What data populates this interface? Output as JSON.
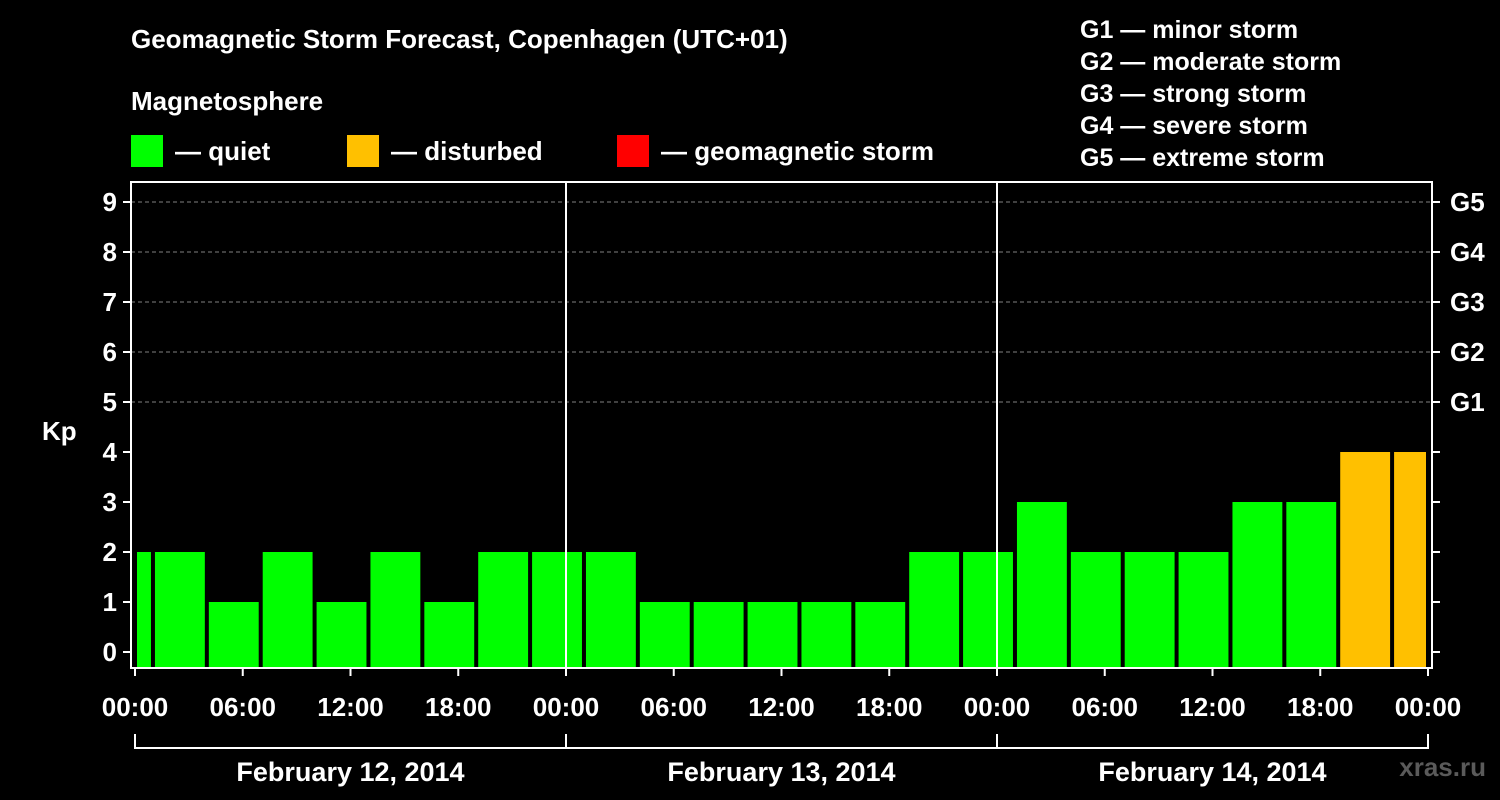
{
  "title": "Geomagnetic Storm Forecast, Copenhagen (UTC+01)",
  "legend": {
    "heading": "Magnetosphere",
    "items": [
      {
        "label": "— quiet",
        "color": "#00ff00"
      },
      {
        "label": "— disturbed",
        "color": "#ffc000"
      },
      {
        "label": "— geomagnetic storm",
        "color": "#ff0000"
      }
    ]
  },
  "storm_scale": [
    "G1 — minor storm",
    "G2 — moderate storm",
    "G3 — strong storm",
    "G4 — severe storm",
    "G5 — extreme storm"
  ],
  "watermark": "xras.ru",
  "chart_data": {
    "type": "bar",
    "ylabel": "Kp",
    "ylim": [
      0,
      9
    ],
    "y_ticks": [
      "0",
      "1",
      "2",
      "3",
      "4",
      "5",
      "6",
      "7",
      "8",
      "9"
    ],
    "right_ticks": [
      {
        "kp": 5,
        "label": "G1"
      },
      {
        "kp": 6,
        "label": "G2"
      },
      {
        "kp": 7,
        "label": "G3"
      },
      {
        "kp": 8,
        "label": "G4"
      },
      {
        "kp": 9,
        "label": "G5"
      }
    ],
    "x_ticks": [
      "00:00",
      "06:00",
      "12:00",
      "18:00",
      "00:00",
      "06:00",
      "12:00",
      "18:00",
      "00:00",
      "06:00",
      "12:00",
      "18:00",
      "00:00"
    ],
    "days": [
      "February 12, 2014",
      "February 13, 2014",
      "February 14, 2014"
    ],
    "interval_hours": 3,
    "first_bar_offset_hours": -2,
    "values": [
      2,
      2,
      1,
      2,
      1,
      2,
      1,
      2,
      2,
      2,
      1,
      1,
      1,
      1,
      1,
      2,
      2,
      3,
      2,
      2,
      2,
      3,
      3,
      4,
      4
    ],
    "colors": {
      "quiet": "#00ff00",
      "disturbed": "#ffc000",
      "storm": "#ff0000"
    },
    "grid": true
  }
}
